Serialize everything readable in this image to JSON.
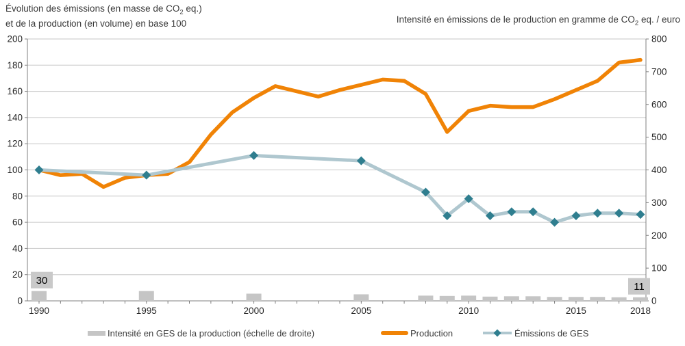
{
  "titles": {
    "left_line1_pre": "Évolution des émissions (en masse de CO",
    "left_sub": "2",
    "left_line1_post": " eq.)",
    "left_line2": "et de la production (en volume) en base 100",
    "right_pre": "Intensité en émissions de le production en gramme de CO",
    "right_sub": "2",
    "right_post": " eq. / euro"
  },
  "legend": {
    "items": [
      {
        "label": "Intensité en GES de la production (échelle de droite)",
        "type": "bar",
        "color": "#c5c5c5"
      },
      {
        "label": "Production",
        "type": "line",
        "color": "#f08306"
      },
      {
        "label": "Émissions de GES",
        "type": "line-marker",
        "color": "#afc7cf",
        "marker_color": "#2f7e8f"
      }
    ]
  },
  "chart_data": {
    "type": "combo",
    "grid": true,
    "legend_position": "bottom",
    "x_axis": {
      "min": 1990,
      "max": 2018,
      "minor_tick_every": 1,
      "labeled_ticks": [
        1990,
        1995,
        2000,
        2005,
        2010,
        2015,
        2018
      ]
    },
    "left_axis": {
      "min": 0,
      "max": 200,
      "ticks": [
        0,
        20,
        40,
        60,
        80,
        100,
        120,
        140,
        160,
        180,
        200
      ]
    },
    "right_axis": {
      "min": 0,
      "max": 800,
      "ticks": [
        0,
        100,
        200,
        300,
        400,
        500,
        600,
        700,
        800
      ]
    },
    "series": [
      {
        "name": "Intensité en GES de la production (échelle de droite)",
        "type": "bar",
        "axis": "right",
        "color": "#c5c5c5",
        "x": [
          1990,
          1995,
          2000,
          2005,
          2008,
          2009,
          2010,
          2011,
          2012,
          2013,
          2014,
          2015,
          2016,
          2017,
          2018
        ],
        "values": [
          30,
          30,
          22,
          20,
          16,
          15,
          16,
          13,
          14,
          14,
          12,
          12,
          12,
          11,
          11
        ]
      },
      {
        "name": "Production",
        "type": "line",
        "axis": "left",
        "color": "#f08306",
        "x": [
          1990,
          1991,
          1992,
          1993,
          1994,
          1995,
          1996,
          1997,
          1998,
          1999,
          2000,
          2001,
          2002,
          2003,
          2004,
          2005,
          2006,
          2007,
          2008,
          2009,
          2010,
          2011,
          2012,
          2013,
          2014,
          2015,
          2016,
          2017,
          2018
        ],
        "values": [
          100,
          96,
          97,
          87,
          94,
          96,
          97,
          106,
          127,
          144,
          155,
          164,
          160,
          156,
          161,
          165,
          169,
          168,
          158,
          129,
          145,
          149,
          148,
          148,
          154,
          161,
          168,
          182,
          184
        ]
      },
      {
        "name": "Émissions de GES",
        "type": "line",
        "axis": "left",
        "color": "#afc7cf",
        "marker": "diamond",
        "marker_color": "#2f7e8f",
        "x": [
          1990,
          1995,
          2000,
          2005,
          2008,
          2009,
          2010,
          2011,
          2012,
          2013,
          2014,
          2015,
          2016,
          2017,
          2018
        ],
        "values": [
          100,
          96,
          111,
          107,
          83,
          65,
          78,
          65,
          68,
          68,
          60,
          65,
          67,
          67,
          66
        ]
      }
    ],
    "annotations": [
      {
        "x": 1990,
        "text": "30"
      },
      {
        "x": 2018,
        "text": "11"
      }
    ]
  },
  "colors": {
    "gridline": "#c6c6c6",
    "axis": "#7f7f7f",
    "tick": "#7f7f7f",
    "axis_text": "#262626",
    "title_text": "#3a3a3a",
    "annotation_bg": "#c9c9c9",
    "annotation_text": "#000000",
    "background": "#ffffff"
  }
}
